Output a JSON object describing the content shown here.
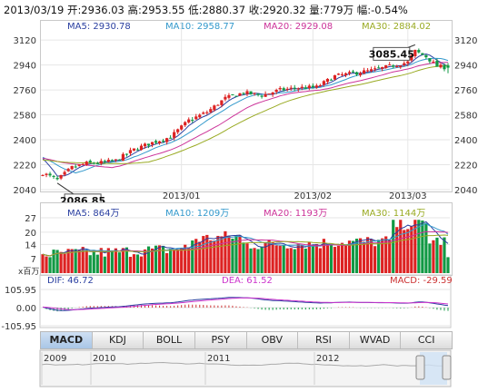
{
  "header": {
    "text": "2013/03/19 开:2936.03 高:2953.55 低:2880.37 收:2920.32 量:779万 幅:-0.54%"
  },
  "main": {
    "legend": [
      {
        "label": "MA5: 2930.78",
        "color": "#2a3fa0"
      },
      {
        "label": "MA10: 2958.77",
        "color": "#3399cc"
      },
      {
        "label": "MA20: 2929.08",
        "color": "#cc3399"
      },
      {
        "label": "MA30: 2884.02",
        "color": "#99aa22"
      }
    ],
    "high_label": "3085.45",
    "low_label": "2086.85",
    "yticks": [
      "3120",
      "2940",
      "2760",
      "2580",
      "2400",
      "2220",
      "2040"
    ],
    "xticks": [
      "2013/01",
      "2013/02",
      "2013/03"
    ]
  },
  "volume": {
    "legend": [
      {
        "label": "MA5: 864万",
        "color": "#2a3fa0"
      },
      {
        "label": "MA10: 1209万",
        "color": "#3399cc"
      },
      {
        "label": "MA20: 1193万",
        "color": "#cc3399"
      },
      {
        "label": "MA30: 1144万",
        "color": "#99aa22"
      }
    ],
    "yticks": [
      "27",
      "20",
      "14",
      "7"
    ],
    "unit": "x百万"
  },
  "macd": {
    "dif": "DIF: 46.72",
    "dea": "DEA: 61.52",
    "macd": "MACD: -29.59",
    "yticks": [
      "105.95",
      "0.00",
      "-105.95"
    ]
  },
  "tabs": [
    {
      "label": "MACD",
      "active": true
    },
    {
      "label": "KDJ"
    },
    {
      "label": "BOLL"
    },
    {
      "label": "PSY"
    },
    {
      "label": "OBV"
    },
    {
      "label": "RSI"
    },
    {
      "label": "WVAD"
    },
    {
      "label": "CCI"
    }
  ],
  "navigator": {
    "years": [
      "2009",
      "2010",
      "2011",
      "2012"
    ]
  },
  "chart_data": {
    "type": "candlestick",
    "title": "",
    "ylim": [
      2040,
      3160
    ],
    "yticks": [
      3120,
      2940,
      2760,
      2580,
      2400,
      2220,
      2040
    ],
    "xticks": [
      "2013/01",
      "2013/02",
      "2013/03"
    ],
    "anchors": [
      [
        0,
        2160
      ],
      [
        4,
        2110
      ],
      [
        8,
        2200
      ],
      [
        12,
        2230
      ],
      [
        16,
        2235
      ],
      [
        20,
        2250
      ],
      [
        25,
        2330
      ],
      [
        30,
        2380
      ],
      [
        35,
        2420
      ],
      [
        40,
        2540
      ],
      [
        45,
        2600
      ],
      [
        50,
        2700
      ],
      [
        55,
        2740
      ],
      [
        60,
        2720
      ],
      [
        65,
        2760
      ],
      [
        70,
        2775
      ],
      [
        75,
        2780
      ],
      [
        80,
        2860
      ],
      [
        85,
        2880
      ],
      [
        90,
        2900
      ],
      [
        95,
        2930
      ],
      [
        100,
        2960
      ],
      [
        102,
        3040
      ],
      [
        105,
        3000
      ],
      [
        108,
        2930
      ],
      [
        111,
        2920
      ]
    ],
    "highlight": {
      "high": 3085.45,
      "low": 2086.85
    },
    "last": {
      "open": 2936.03,
      "high": 2953.55,
      "low": 2880.37,
      "close": 2920.32,
      "volume_wan": 779,
      "change_pct": -0.54
    },
    "ma": {
      "MA5": 2930.78,
      "MA10": 2958.77,
      "MA20": 2929.08,
      "MA30": 2884.02
    },
    "volume": {
      "ylim": [
        0,
        27
      ],
      "yticks": [
        27,
        20,
        14,
        7
      ],
      "unit": "x百万"
    },
    "macd_values": {
      "DIF": 46.72,
      "DEA": 61.52,
      "MACD": -29.59,
      "ylim": [
        -105.95,
        105.95
      ]
    }
  }
}
